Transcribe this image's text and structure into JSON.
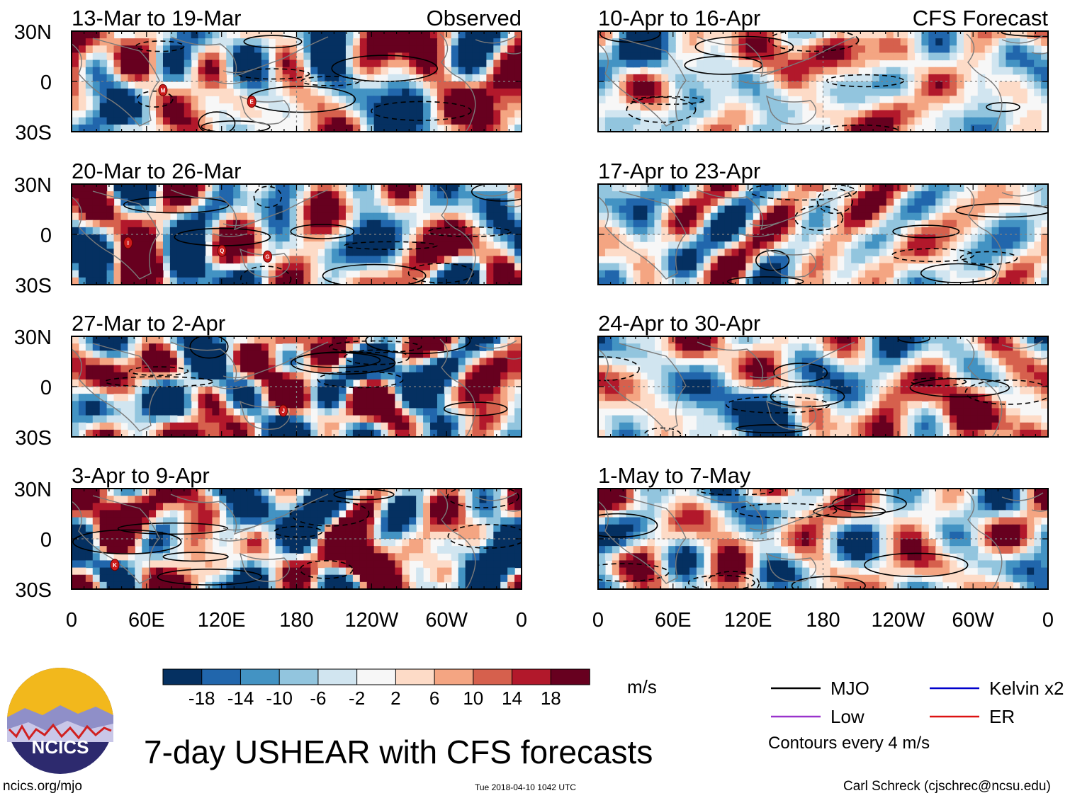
{
  "chart_data": {
    "type": "heatmap",
    "title": "7-day USHEAR with CFS forecasts",
    "units": "m/s",
    "columns": {
      "left_label": "Observed",
      "right_label": "CFS Forecast"
    },
    "panels_left": [
      {
        "period": "13-Mar to 19-Mar",
        "tc_markers": [
          "E",
          "M"
        ]
      },
      {
        "period": "20-Mar to 26-Mar",
        "tc_markers": [
          "G",
          "Q",
          "I"
        ]
      },
      {
        "period": "27-Mar to 2-Apr",
        "tc_markers": [
          "J"
        ]
      },
      {
        "period": "3-Apr to 9-Apr",
        "tc_markers": [
          "K"
        ]
      }
    ],
    "panels_right": [
      {
        "period": "10-Apr to 16-Apr",
        "tc_markers": []
      },
      {
        "period": "17-Apr to 23-Apr",
        "tc_markers": []
      },
      {
        "period": "24-Apr to 30-Apr",
        "tc_markers": []
      },
      {
        "period": "1-May to 7-May",
        "tc_markers": []
      }
    ],
    "x_ticks": [
      "0",
      "60E",
      "120E",
      "180",
      "120W",
      "60W",
      "0"
    ],
    "y_ticks": [
      "30N",
      "0",
      "30S"
    ],
    "colorbar": {
      "ticks": [
        "-18",
        "-14",
        "-10",
        "-6",
        "-2",
        "2",
        "6",
        "10",
        "14",
        "18"
      ],
      "colors": [
        "#053061",
        "#2166ac",
        "#4393c3",
        "#92c5de",
        "#d1e5f0",
        "#f7f7f7",
        "#fddbc7",
        "#f4a582",
        "#d6604d",
        "#b2182b",
        "#67001f"
      ]
    },
    "contour_legend": [
      {
        "label": "MJO",
        "color": "#000000"
      },
      {
        "label": "Kelvin x2",
        "color": "#0000cc"
      },
      {
        "label": "Low",
        "color": "#9933cc"
      },
      {
        "label": "ER",
        "color": "#dd1111"
      }
    ],
    "contour_note": "Contours every 4 m/s"
  },
  "logo": {
    "text": "NCICS"
  },
  "footer": {
    "left": "ncics.org/mjo",
    "center": "Tue 2018-04-10 1042 UTC",
    "right": "Carl Schreck (cjschrec@ncsu.edu)"
  }
}
